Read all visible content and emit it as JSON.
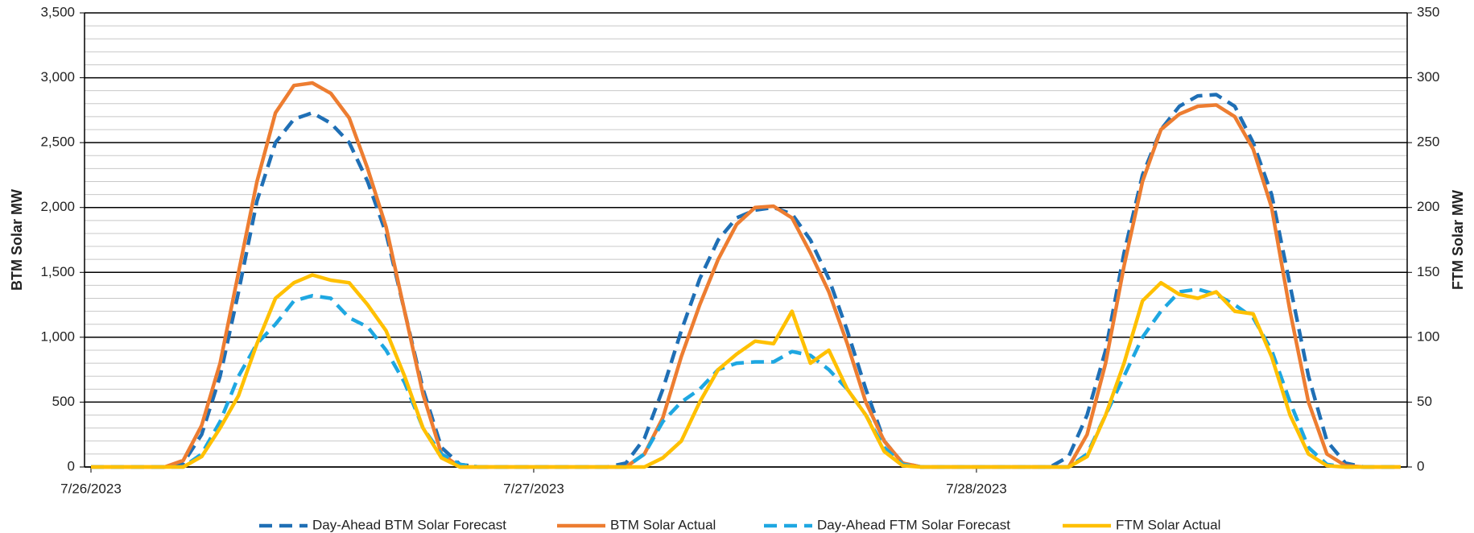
{
  "chart_data": {
    "type": "line",
    "y_label": "BTM Solar MW",
    "y2_label": "FTM Solar MW",
    "categories": [
      "7/26/2023",
      null,
      null,
      null,
      null,
      null,
      null,
      null,
      null,
      null,
      null,
      null,
      null,
      null,
      null,
      null,
      null,
      null,
      null,
      null,
      null,
      null,
      null,
      null,
      "7/27/2023",
      null,
      null,
      null,
      null,
      null,
      null,
      null,
      null,
      null,
      null,
      null,
      null,
      null,
      null,
      null,
      null,
      null,
      null,
      null,
      null,
      null,
      null,
      null,
      "7/28/2023",
      null,
      null,
      null,
      null,
      null,
      null,
      null,
      null,
      null,
      null,
      null,
      null,
      null,
      null,
      null,
      null,
      null,
      null,
      null,
      null,
      null,
      null,
      null
    ],
    "ylim": [
      0,
      3500
    ],
    "yticks": [
      0,
      500,
      {
        "value": 1000,
        "label": "1,000"
      },
      {
        "value": 1500,
        "label": "1,500"
      },
      {
        "value": 2000,
        "label": "2,000"
      },
      {
        "value": 2500,
        "label": "2,500"
      },
      {
        "value": 3000,
        "label": "3,000"
      },
      {
        "value": 3500,
        "label": "3,500"
      }
    ],
    "y2lim": [
      0,
      350
    ],
    "y2ticks": [
      0,
      50,
      100,
      150,
      200,
      250,
      300,
      350
    ],
    "grid": true,
    "legend": "bottom",
    "series": [
      {
        "name": "Day-Ahead BTM Solar Forecast",
        "color": "#1f6fb5",
        "style": "dashed",
        "axis": "y",
        "values": [
          0,
          0,
          0,
          0,
          0,
          30,
          250,
          700,
          1350,
          2050,
          2500,
          2680,
          2730,
          2650,
          2500,
          2200,
          1800,
          1200,
          600,
          150,
          20,
          0,
          0,
          0,
          0,
          0,
          0,
          0,
          0,
          30,
          220,
          600,
          1050,
          1450,
          1750,
          1920,
          1980,
          2000,
          1950,
          1750,
          1450,
          1050,
          600,
          200,
          30,
          0,
          0,
          0,
          0,
          0,
          0,
          0,
          0,
          80,
          400,
          900,
          1650,
          2250,
          2600,
          2780,
          2860,
          2870,
          2780,
          2500,
          2100,
          1400,
          700,
          200,
          30,
          0,
          0,
          0
        ]
      },
      {
        "name": "BTM Solar Actual",
        "color": "#ed7d31",
        "style": "solid",
        "axis": "y",
        "values": [
          0,
          0,
          0,
          0,
          0,
          50,
          320,
          800,
          1500,
          2200,
          2730,
          2940,
          2960,
          2880,
          2690,
          2300,
          1850,
          1200,
          560,
          100,
          0,
          0,
          0,
          0,
          0,
          0,
          0,
          0,
          0,
          0,
          100,
          380,
          850,
          1250,
          1600,
          1870,
          2000,
          2010,
          1920,
          1650,
          1350,
          950,
          500,
          200,
          30,
          0,
          0,
          0,
          0,
          0,
          0,
          0,
          0,
          0,
          250,
          800,
          1550,
          2200,
          2600,
          2720,
          2780,
          2790,
          2700,
          2450,
          2000,
          1200,
          500,
          100,
          10,
          0,
          0,
          0
        ]
      },
      {
        "name": "Day-Ahead FTM Solar Forecast",
        "color": "#1ea7e1",
        "style": "dashed",
        "axis": "y2",
        "values": [
          0,
          0,
          0,
          0,
          0,
          0,
          10,
          35,
          70,
          95,
          110,
          128,
          132,
          130,
          115,
          108,
          90,
          65,
          30,
          10,
          2,
          0,
          0,
          0,
          0,
          0,
          0,
          0,
          0,
          0,
          10,
          35,
          50,
          60,
          75,
          80,
          81,
          81,
          89,
          86,
          75,
          60,
          40,
          15,
          2,
          0,
          0,
          0,
          0,
          0,
          0,
          0,
          0,
          0,
          10,
          40,
          70,
          100,
          120,
          135,
          137,
          133,
          125,
          115,
          90,
          50,
          15,
          2,
          0,
          0,
          0,
          0
        ]
      },
      {
        "name": "FTM Solar Actual",
        "color": "#ffc000",
        "style": "solid",
        "axis": "y2",
        "values": [
          0,
          0,
          0,
          0,
          0,
          0,
          8,
          30,
          55,
          95,
          130,
          142,
          148,
          144,
          142,
          125,
          105,
          70,
          30,
          7,
          0,
          0,
          0,
          0,
          0,
          0,
          0,
          0,
          0,
          0,
          0,
          7,
          20,
          50,
          75,
          87,
          97,
          95,
          120,
          80,
          90,
          60,
          40,
          12,
          1,
          0,
          0,
          0,
          0,
          0,
          0,
          0,
          0,
          0,
          8,
          40,
          80,
          128,
          142,
          133,
          130,
          135,
          120,
          118,
          85,
          40,
          10,
          1,
          0,
          0,
          0,
          0
        ]
      }
    ]
  }
}
